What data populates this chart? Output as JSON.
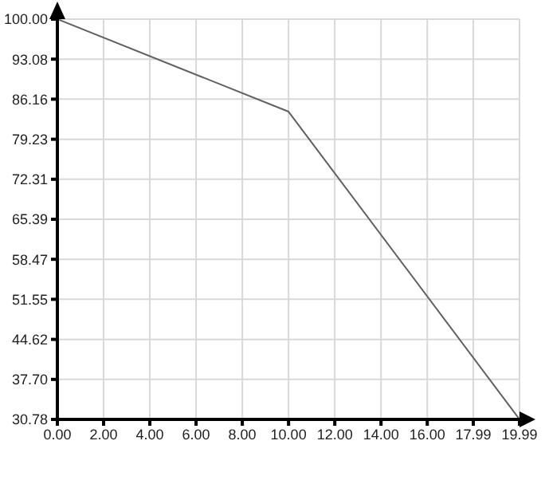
{
  "chart_data": {
    "type": "line",
    "x": [
      0,
      10,
      19.99
    ],
    "series": [
      {
        "color": "#606060",
        "values": [
          100,
          84,
          30.8
        ]
      }
    ],
    "xlim": [
      0,
      19.99
    ],
    "xticks": [
      {
        "value": 0,
        "label": "0.00"
      },
      {
        "value": 2,
        "label": "2.00"
      },
      {
        "value": 4,
        "label": "4.00"
      },
      {
        "value": 6,
        "label": "6.00"
      },
      {
        "value": 8,
        "label": "8.00"
      },
      {
        "value": 10,
        "label": "10.00"
      },
      {
        "value": 12,
        "label": "12.00"
      },
      {
        "value": 14,
        "label": "14.00"
      },
      {
        "value": 16,
        "label": "16.00"
      },
      17.99,
      19.99
    ],
    "ylim": [
      30.78,
      100
    ],
    "yticks": [
      30.78,
      {
        "value": 37.7,
        "label": "37.70"
      },
      44.62,
      51.55,
      58.47,
      65.39,
      72.31,
      79.23,
      86.16,
      93.08,
      {
        "value": 100,
        "label": "100.00"
      }
    ],
    "grid": true,
    "marker": "none",
    "line_style": "solid",
    "legend": false
  }
}
